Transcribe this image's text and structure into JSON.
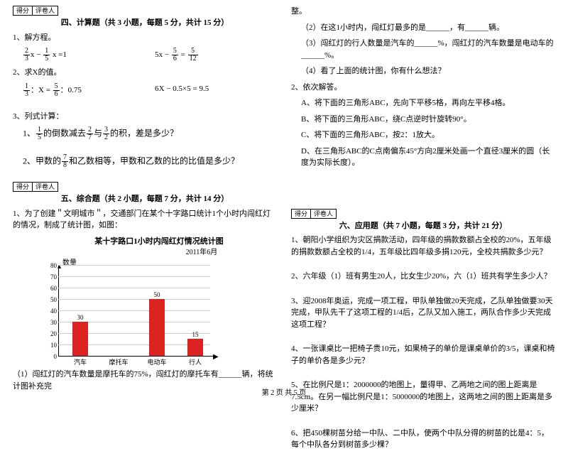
{
  "scoreBox": {
    "a": "得分",
    "b": "评卷人"
  },
  "sec4": {
    "title": "四、计算题（共 3 小题，每题 5 分，共计 15 分）",
    "q1": "1、解方程。",
    "q1a_pre": "x − ",
    "q1a_post": " x =1",
    "q1a_f1n": "2",
    "q1a_f1d": "3",
    "q1a_f2n": "1",
    "q1a_f2d": "5",
    "q1b_pre": "5x − ",
    "q1b_mid": " = ",
    "q1b_f1n": "5",
    "q1b_f1d": "6",
    "q1b_f2n": "5",
    "q1b_f2d": "12",
    "q2": "2、求X的值。",
    "q2a_pre": "：X = ",
    "q2a_mid": "：0.75",
    "q2a_f1n": "1",
    "q2a_f1d": "3",
    "q2a_f2n": "5",
    "q2a_f2d": "6",
    "q2b": "6X − 0.5×5 = 9.5",
    "q3": "3、列式计算：",
    "q3a_pre": "1、",
    "q3a_mid1": "的倒数减去",
    "q3a_mid2": "与",
    "q3a_post": "的积，差是多少？",
    "q3a_f1n": "1",
    "q3a_f1d": "5",
    "q3a_f2n": "2",
    "q3a_f2d": "7",
    "q3a_f3n": "3",
    "q3a_f3d": "2",
    "q3b_pre": "2、甲数的",
    "q3b_post": "和乙数相等，甲数和乙数的比的比值是多少？",
    "q3b_f1n": "7",
    "q3b_f1d": "8"
  },
  "sec5": {
    "title": "五、综合题（共 2 小题，每题 7 分，共计 14 分）",
    "q1": "1、为了创建＂文明城市＂，交通部门在某个十字路口统计1个小时内闯红灯的情况，制成了统计图，如图：",
    "chart_title": "某十字路口1小时内闯红灯情况统计图",
    "chart_sub": "2011年6月",
    "ylabel": "数量",
    "yticks": [
      "0",
      "10",
      "20",
      "30",
      "40",
      "50",
      "60",
      "70",
      "80"
    ],
    "cats": [
      "汽车",
      "摩托车",
      "电动车",
      "行人"
    ],
    "vals": [
      30,
      "",
      50,
      15
    ],
    "bar_color": "#d22",
    "q1_1": "（1）闯红灯的汽车数量是摩托车的75%，闯红灯的摩托车有______辆，将统计图补充完"
  },
  "right": {
    "r0": "整。",
    "r1": "（2）在这1小时内，闯红灯最多的是______，有______辆。",
    "r2": "（3）闯红灯的行人数量是汽车的______%，闯红灯的汽车数量是电动车的______%。",
    "r3": "（4）看了上面的统计图，你有什么想法？",
    "r4": "2、依次解答。",
    "r4a": "A、将下面的三角形ABC，先向下平移5格，再向左平移4格。",
    "r4b": "B、将下面的三角形ABC，绕C点逆时针旋转90°。",
    "r4c": "C、将下面的三角形ABC，按2：1放大。",
    "r4d": "D、在三角形ABC的C点南偏东45°方向2厘米处画一个直径3厘米的圆（长度为实际长度）。"
  },
  "sec6": {
    "title": "六、应用题（共 7 小题，每题 3 分，共计 21 分）",
    "q1": "1、朝阳小学组织为灾区捐款活动，四年级的捐款数额占全校的20%，五年级的捐款数额占全校的1/4，五年级比四年级多捐120元，全校共捐款多少元？",
    "q2": "2、六年级（1）班有男生20人，比女生少20%，六（1）班共有学生多少人？",
    "q3": "3、迎2008年奥运，完成一项工程，甲队单独做20天完成，乙队单独做要30天完成，甲队先干了这项工程的1/4后，乙队又加入施工，两队合作多少天完成这项工程？",
    "q4": "4、一张课桌比一把椅子贵10元，如果椅子的单价是课桌单价的3/5，课桌和椅子的单价各是多少元？",
    "q5": "5、在比例尺是1：2000000的地图上，量得甲、乙两地之间的图上距离是7.5cm。在另一幅比例尺是1：5000000的地图上，这两地之间的图上距离是多少厘米？",
    "q6": "6、把450棵树苗分给一中队、二中队，使两个中队分得的树苗的比是4：5，每个中队各分到树苗多少棵？"
  },
  "footer": "第 2 页 共 5 页"
}
